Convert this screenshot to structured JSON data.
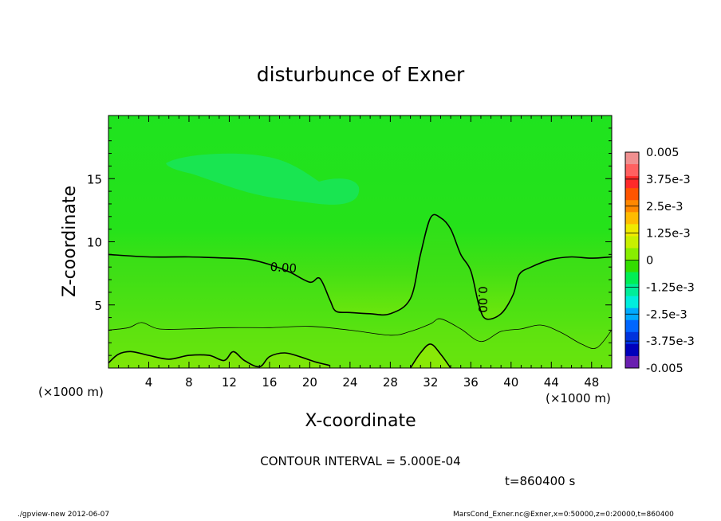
{
  "chart_data": {
    "type": "heatmap",
    "title": "disturbunce of Exner",
    "xlabel": "X-coordinate",
    "ylabel": "Z-coordinate",
    "x_unit_left": "(×1000 m)",
    "x_unit_right": "(×1000 m)",
    "xlim": [
      0,
      50
    ],
    "ylim": [
      0,
      20
    ],
    "x_ticks": [
      4,
      8,
      12,
      16,
      20,
      24,
      28,
      32,
      36,
      40,
      44,
      48
    ],
    "y_ticks": [
      5,
      10,
      15
    ],
    "grid": false,
    "colorbar": {
      "placement": "right",
      "labels": [
        "0.005",
        "3.75e-3",
        "2.5e-3",
        "1.25e-3",
        "0",
        "-1.25e-3",
        "-2.5e-3",
        "-3.75e-3",
        "-0.005"
      ],
      "colors": [
        "#f09090",
        "#ff6060",
        "#ff2a2a",
        "#ff5500",
        "#ff8800",
        "#ffbb00",
        "#f0ea00",
        "#c8f000",
        "#88ee00",
        "#33dd00",
        "#00ee55",
        "#00ee99",
        "#00eedd",
        "#00aaff",
        "#0066ff",
        "#0033dd",
        "#0000bb",
        "#6a1fb0"
      ]
    },
    "contour_interval": "CONTOUR INTERVAL = 5.000E-04",
    "zero_contour_label": "0.00",
    "zero_contour": {
      "x": [
        0,
        4,
        8,
        12,
        14,
        16,
        18,
        20,
        21,
        22,
        22.6,
        24,
        26,
        28,
        30,
        31,
        32,
        33,
        34,
        35,
        36,
        36.8,
        37.5,
        39,
        40.2,
        40.8,
        42,
        44,
        46,
        48,
        50
      ],
      "z": [
        9,
        8.8,
        8.8,
        8.7,
        8.6,
        8.2,
        7.6,
        6.8,
        7.1,
        5.4,
        4.5,
        4.4,
        4.3,
        4.3,
        5.5,
        9,
        11.9,
        11.9,
        11,
        9,
        7.7,
        5,
        3.9,
        4.3,
        5.8,
        7.4,
        8,
        8.6,
        8.8,
        8.7,
        8.8
      ]
    },
    "mid_contour": {
      "x": [
        0,
        2,
        3.3,
        5,
        8,
        12,
        16,
        20,
        24,
        28,
        30,
        32,
        33,
        35,
        37,
        39,
        41,
        43,
        45,
        47,
        48.5,
        50
      ],
      "z": [
        3,
        3.2,
        3.6,
        3.1,
        3.1,
        3.2,
        3.2,
        3.3,
        3.0,
        2.6,
        2.9,
        3.5,
        3.9,
        3.1,
        2.1,
        2.9,
        3.1,
        3.4,
        2.8,
        1.9,
        1.6,
        3.0
      ]
    },
    "low_contour": {
      "x": [
        0,
        1,
        2.3,
        4,
        6,
        8,
        10,
        11.5,
        12.4,
        13.5,
        15,
        16,
        17.5,
        19,
        20.5,
        22
      ],
      "z": [
        0.4,
        1.1,
        1.3,
        1.0,
        0.7,
        1.0,
        1.0,
        0.6,
        1.3,
        0.6,
        0.1,
        0.9,
        1.2,
        0.9,
        0.5,
        0.2
      ]
    },
    "bottom_mound": {
      "x": [
        30,
        31,
        32,
        33,
        34
      ],
      "z": [
        0,
        1.2,
        1.9,
        1.1,
        0
      ]
    },
    "time_label": "t=860400 s"
  },
  "footer": {
    "program": "./gpview-new   2012-06-07",
    "source": "MarsCond_Exner.nc@Exner,x=0:50000,z=0:20000,t=860400"
  }
}
